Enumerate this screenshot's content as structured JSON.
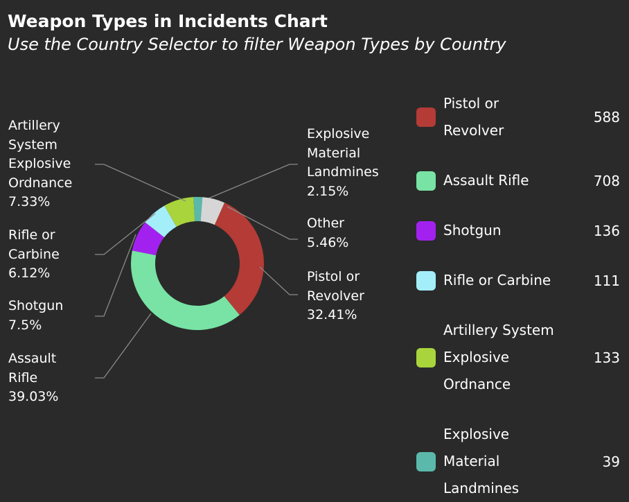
{
  "chart_data": {
    "type": "pie",
    "title": "Weapon Types in Incidents Chart",
    "subtitle": "Use the Country Selector to filter Weapon Types by Country",
    "categories": [
      "Pistol or Revolver",
      "Assault Rifle",
      "Shotgun",
      "Rifle or Carbine",
      "Artillery System Explosive Ordnance",
      "Explosive Material Landmines",
      "Other"
    ],
    "values": [
      32.41,
      39.03,
      7.5,
      6.12,
      7.33,
      2.15,
      5.46
    ],
    "value_labels": [
      "32.41%",
      "39.03%",
      "7.5%",
      "6.12%",
      "7.33%",
      "2.15%",
      "5.46%"
    ],
    "colors": [
      "#b43b36",
      "#78e3a4",
      "#a321ef",
      "#a3eef9",
      "#a9d43c",
      "#5ab9aa",
      "#d6d6d6"
    ],
    "legend": {
      "position": "right",
      "entries": [
        {
          "label": "Pistol or Revolver",
          "count": 588,
          "color": "#b43b36"
        },
        {
          "label": "Assault Rifle",
          "count": 708,
          "color": "#78e3a4"
        },
        {
          "label": "Shotgun",
          "count": 136,
          "color": "#a321ef"
        },
        {
          "label": "Rifle or Carbine",
          "count": 111,
          "color": "#a3eef9"
        },
        {
          "label": "Artillery System Explosive Ordnance",
          "count": 133,
          "color": "#a9d43c"
        },
        {
          "label": "Explosive Material Landmines",
          "count": 39,
          "color": "#5ab9aa"
        }
      ]
    }
  }
}
